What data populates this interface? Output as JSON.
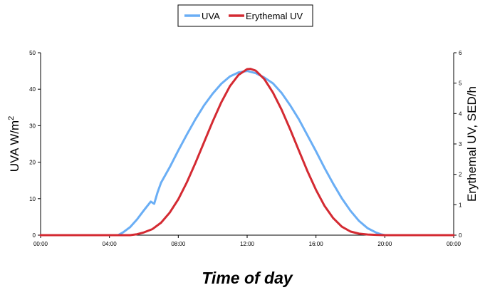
{
  "chart_data": {
    "type": "line",
    "title": "",
    "xlabel": "Time of day",
    "ylabel_left": "UVA W/m",
    "ylabel_left_superscript": "2",
    "ylabel_right": "Erythemal UV, SED/h",
    "x_ticks": [
      "00:00",
      "04:00",
      "08:00",
      "12:00",
      "16:00",
      "20:00",
      "00:00"
    ],
    "x_tick_hours": [
      0,
      4,
      8,
      12,
      16,
      20,
      24
    ],
    "xlim": [
      0,
      24
    ],
    "y_left_ticks": [
      "0",
      "10",
      "20",
      "30",
      "40",
      "50"
    ],
    "ylim_left": [
      0,
      50
    ],
    "y_right_ticks": [
      "0",
      "1",
      "2",
      "3",
      "4",
      "5",
      "6"
    ],
    "ylim_right": [
      0,
      6
    ],
    "grid": false,
    "legend_position": "top-center",
    "series": [
      {
        "name": "UVA",
        "axis": "left",
        "color": "#6aaef5",
        "x": [
          0,
          4.5,
          4.8,
          5.2,
          5.6,
          6,
          6.4,
          6.6,
          6.8,
          7,
          7.5,
          8,
          8.5,
          9,
          9.5,
          10,
          10.5,
          11,
          11.5,
          12,
          12.5,
          13,
          13.5,
          14,
          14.5,
          15,
          15.5,
          16,
          16.5,
          17,
          17.5,
          18,
          18.5,
          19,
          19.5,
          19.8,
          20,
          24
        ],
        "y": [
          0,
          0,
          0.8,
          2.2,
          4.3,
          6.8,
          9.2,
          8.6,
          11.8,
          14.4,
          18.6,
          23.2,
          27.6,
          31.8,
          35.6,
          38.8,
          41.5,
          43.5,
          44.6,
          45.0,
          44.4,
          43.2,
          41.6,
          39.0,
          35.6,
          31.8,
          27.4,
          23.0,
          18.4,
          14.1,
          10.1,
          6.7,
          3.9,
          1.9,
          0.7,
          0.2,
          0,
          0
        ]
      },
      {
        "name": "Erythemal UV",
        "axis": "right",
        "color": "#d42a32",
        "x": [
          0,
          5.2,
          5.6,
          6,
          6.5,
          7,
          7.5,
          8,
          8.5,
          9,
          9.5,
          10,
          10.5,
          11,
          11.5,
          12,
          12.2,
          12.5,
          13,
          13.5,
          14,
          14.5,
          15,
          15.5,
          16,
          16.5,
          17,
          17.5,
          18,
          18.5,
          19,
          19.5,
          20,
          24
        ],
        "y": [
          0,
          0,
          0.03,
          0.09,
          0.2,
          0.41,
          0.74,
          1.18,
          1.74,
          2.38,
          3.06,
          3.74,
          4.37,
          4.9,
          5.27,
          5.46,
          5.47,
          5.41,
          5.13,
          4.69,
          4.13,
          3.48,
          2.79,
          2.11,
          1.49,
          0.96,
          0.56,
          0.28,
          0.12,
          0.05,
          0.02,
          0.01,
          0,
          0
        ]
      }
    ]
  }
}
